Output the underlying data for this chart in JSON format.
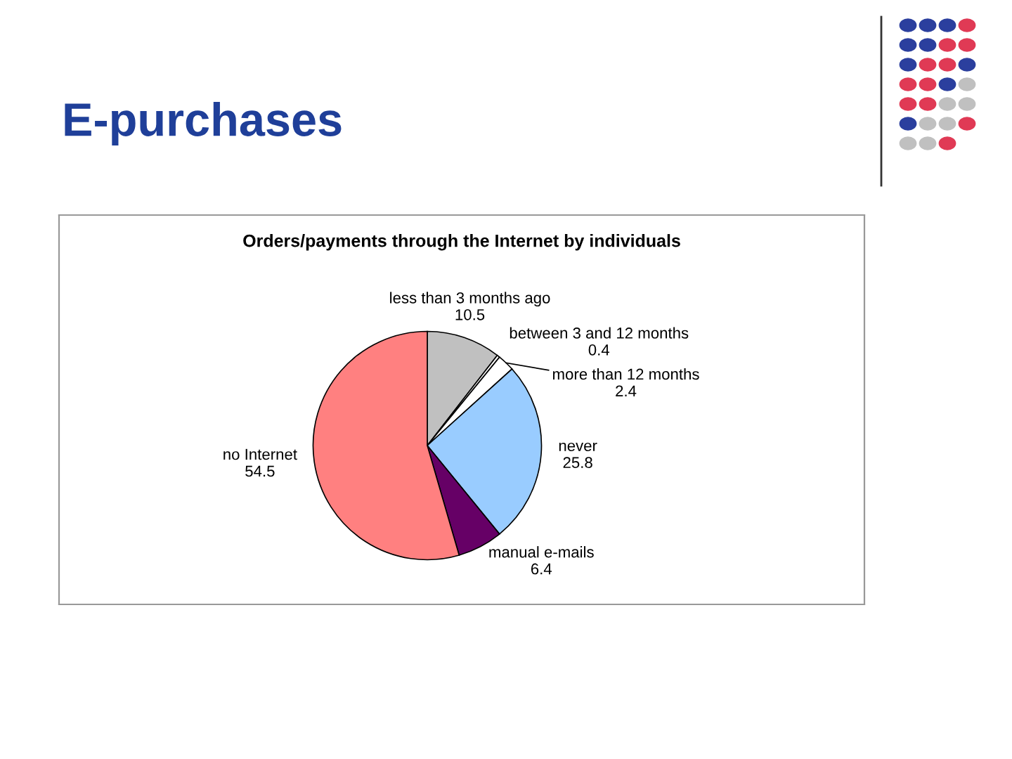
{
  "chart_data": {
    "type": "pie",
    "title": "E-purchases",
    "subtitle": "Orders/payments through the Internet by individuals",
    "categories": [
      "less than 3 months ago",
      "between 3 and 12 months",
      "more than 12 months",
      "never",
      "manual e-mails",
      "no Internet"
    ],
    "values": [
      10.5,
      0.4,
      2.4,
      25.8,
      6.4,
      54.5
    ],
    "colors": [
      "#c0c0c0",
      "#ffffff",
      "#ffffff",
      "#99ccff",
      "#660066",
      "#ff8080"
    ],
    "data_labels": true,
    "legend": false
  }
}
